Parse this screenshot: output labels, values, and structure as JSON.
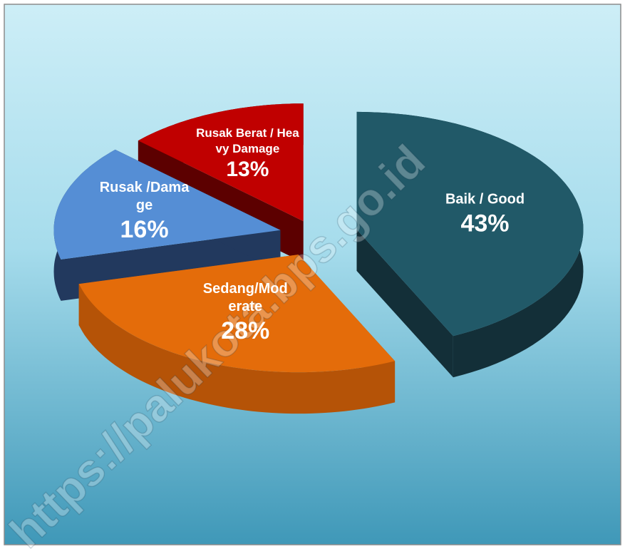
{
  "chart_data": {
    "type": "pie",
    "categories": [
      "Baik / Good",
      "Sedang/Moderate",
      "Rusak /Damage",
      "Rusak Berat / Heavy Damage"
    ],
    "values": [
      43,
      28,
      16,
      13
    ],
    "value_labels": [
      "43%",
      "28%",
      "16%",
      "13%"
    ],
    "colors": [
      "#215968",
      "#e46c0a",
      "#558ed5",
      "#c00000"
    ],
    "side_colors": [
      "#132f38",
      "#b55307",
      "#22395e",
      "#5c0000"
    ],
    "watermark": "https://palukota.bps.go.id"
  }
}
